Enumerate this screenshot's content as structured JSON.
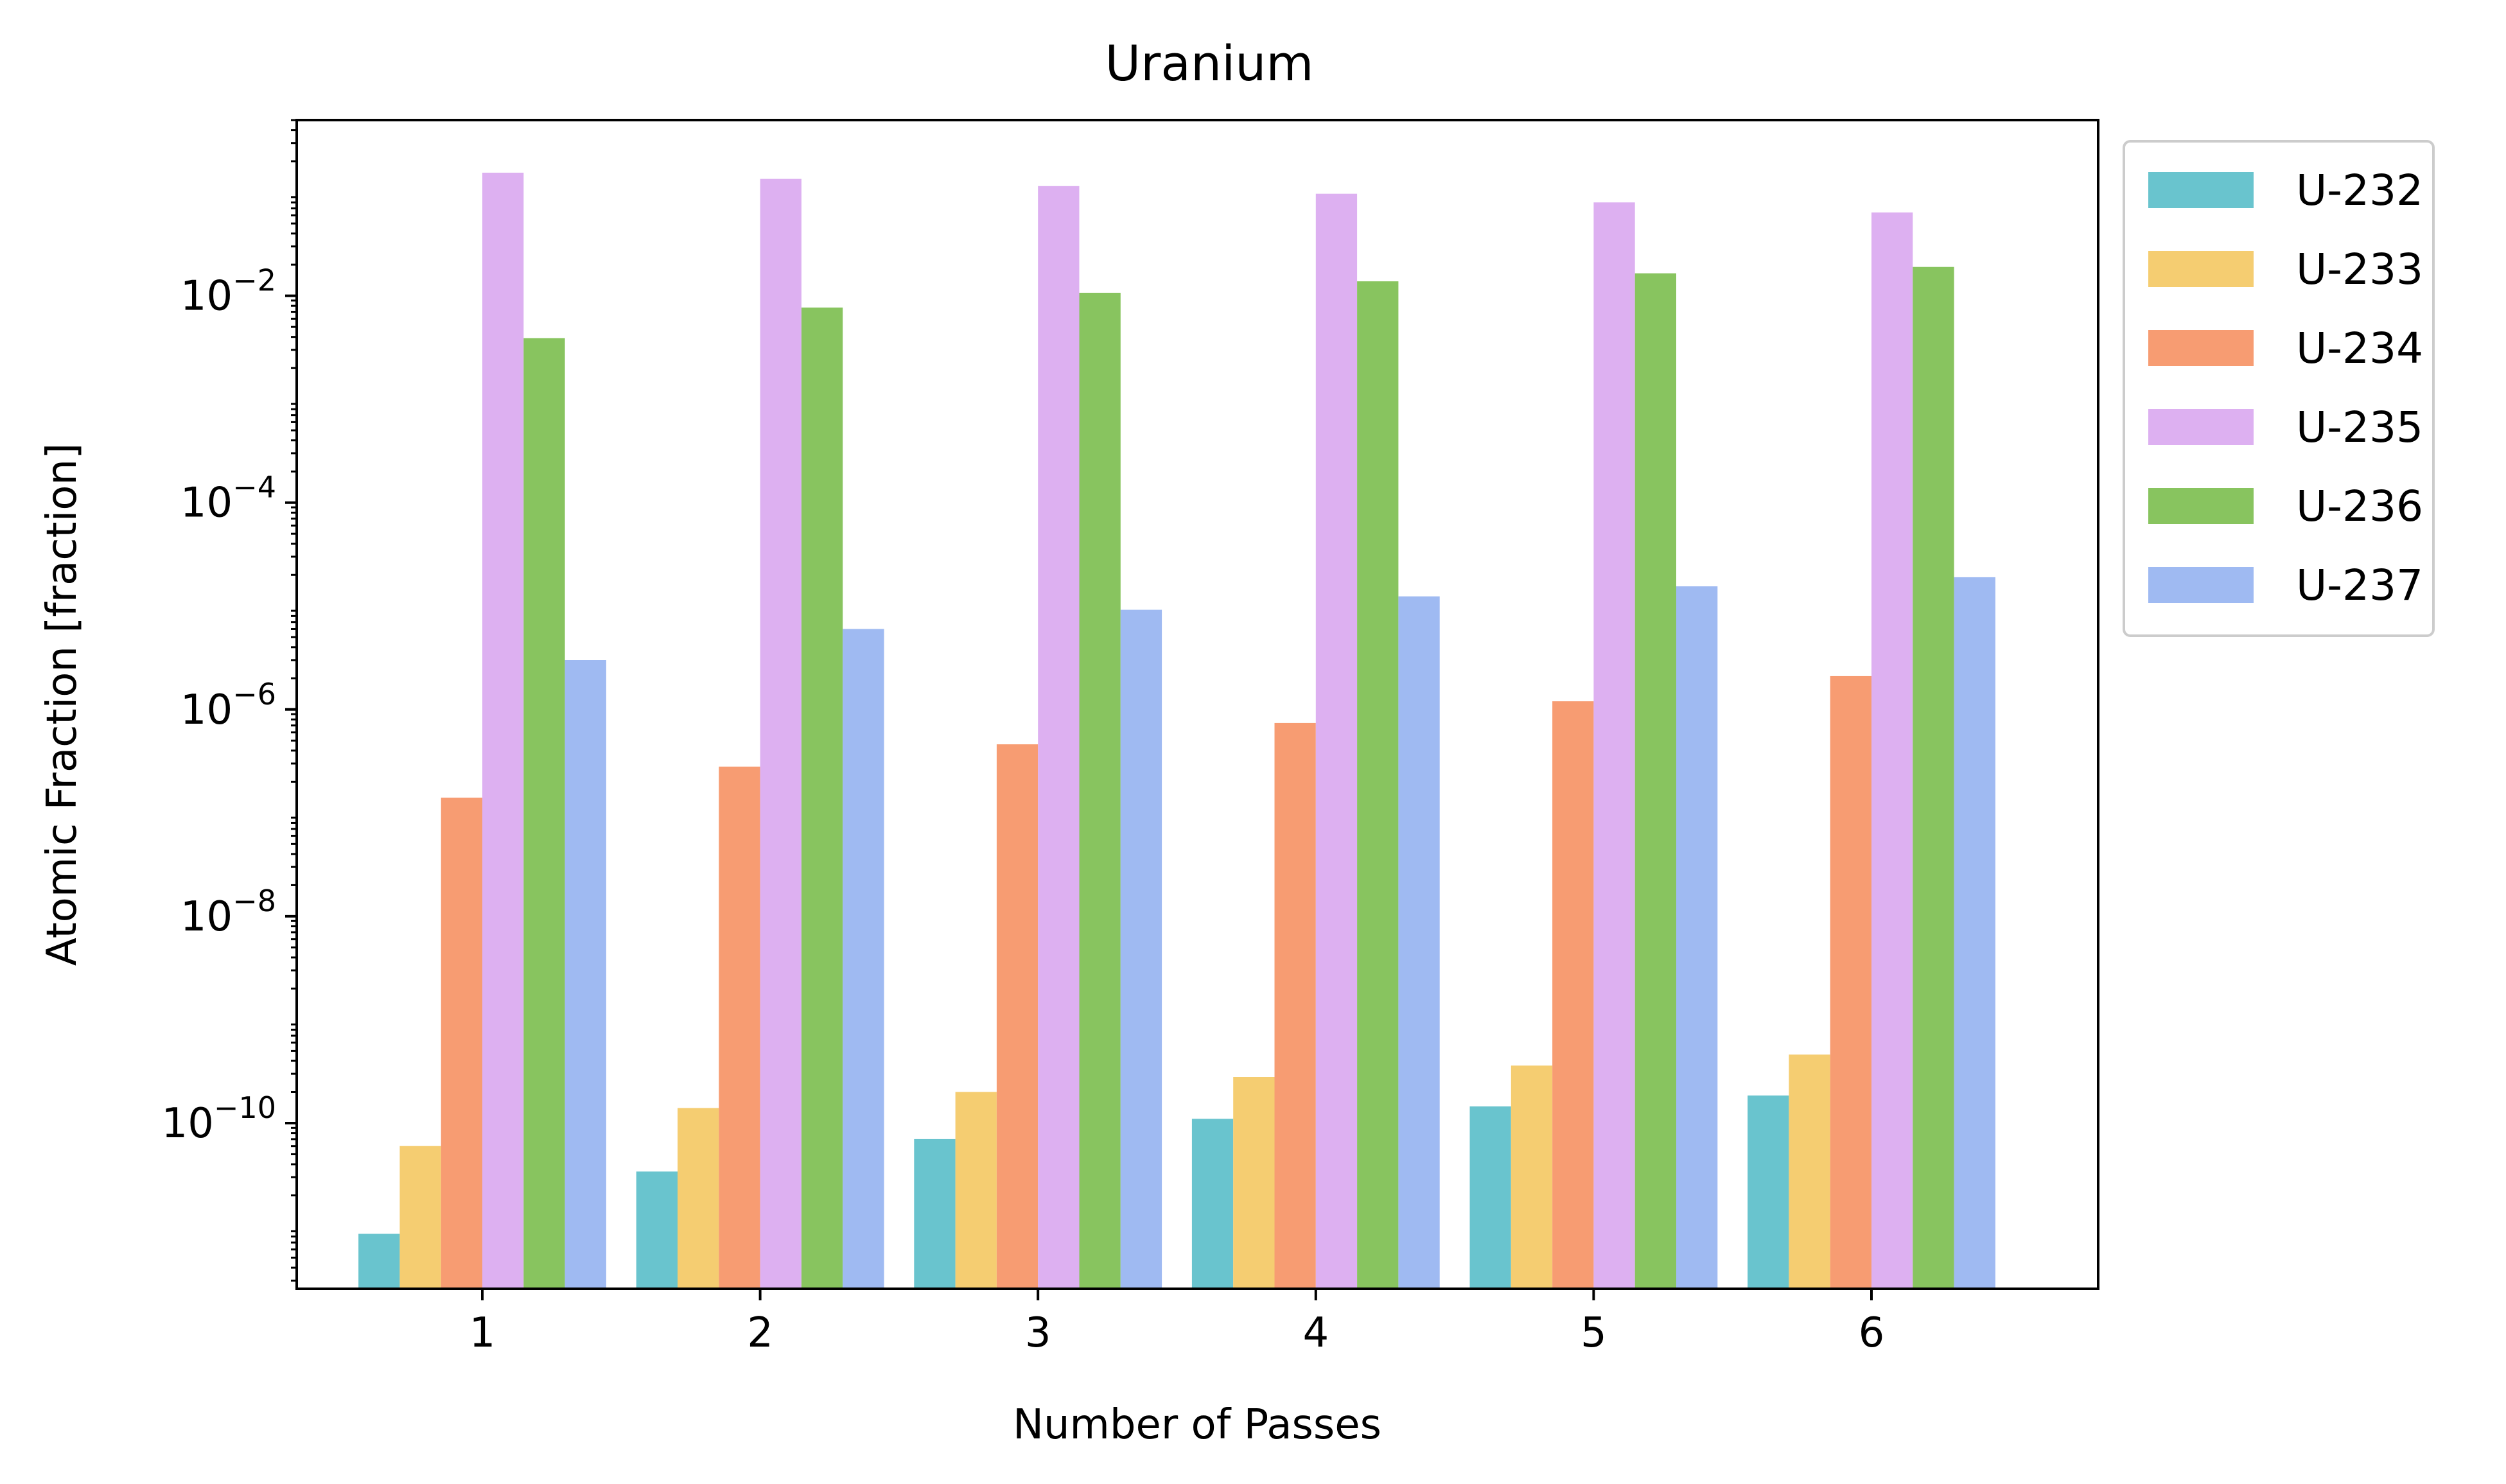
{
  "chart_data": {
    "type": "bar",
    "title": "Uranium",
    "xlabel": "Number of Passes",
    "ylabel": "Atomic Fraction [fraction]",
    "yscale": "log",
    "ylim": [
      2.5e-12,
      0.5
    ],
    "categories": [
      "1",
      "2",
      "3",
      "4",
      "5",
      "6"
    ],
    "y_ticks": [
      {
        "base": "10",
        "exp": "−10",
        "value": 1e-10
      },
      {
        "base": "10",
        "exp": "−8",
        "value": 1e-08
      },
      {
        "base": "10",
        "exp": "−6",
        "value": 1e-06
      },
      {
        "base": "10",
        "exp": "−4",
        "value": 0.0001
      },
      {
        "base": "10",
        "exp": "−2",
        "value": 0.01
      }
    ],
    "legend_position": "outside-top-right",
    "grid": false,
    "series": [
      {
        "name": "U-232",
        "color": "#69c4ce",
        "values": [
          8.5e-12,
          3.4e-11,
          7e-11,
          1.1e-10,
          1.45e-10,
          1.85e-10
        ]
      },
      {
        "name": "U-233",
        "color": "#f5cd71",
        "values": [
          6e-11,
          1.4e-10,
          2e-10,
          2.8e-10,
          3.6e-10,
          4.6e-10
        ]
      },
      {
        "name": "U-234",
        "color": "#f79c72",
        "values": [
          1.4e-07,
          2.8e-07,
          4.6e-07,
          7.4e-07,
          1.2e-06,
          2.1e-06
        ]
      },
      {
        "name": "U-235",
        "color": "#ddb0f1",
        "values": [
          0.155,
          0.135,
          0.115,
          0.097,
          0.08,
          0.064
        ]
      },
      {
        "name": "U-236",
        "color": "#88c45f",
        "values": [
          0.0039,
          0.0077,
          0.0107,
          0.0138,
          0.0165,
          0.019
        ]
      },
      {
        "name": "U-237",
        "color": "#9fbaf2",
        "values": [
          3e-06,
          6e-06,
          9.2e-06,
          1.24e-05,
          1.55e-05,
          1.9e-05
        ]
      }
    ]
  }
}
